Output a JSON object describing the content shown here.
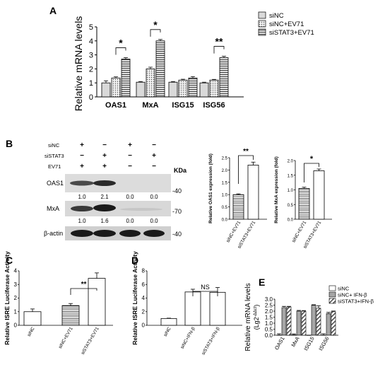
{
  "panel_labels": {
    "A": "A",
    "B": "B",
    "C": "C",
    "D": "D",
    "E": "E"
  },
  "chart_data": [
    {
      "id": "A",
      "type": "bar",
      "ylabel": "Relative mRNA levels",
      "ylim": [
        0,
        5
      ],
      "yticks": [
        "0",
        "1",
        "2",
        "3",
        "4",
        "5"
      ],
      "categories": [
        "OAS1",
        "MxA",
        "ISG15",
        "ISG56"
      ],
      "series": [
        {
          "name": "siNC",
          "values": [
            1.0,
            1.05,
            1.05,
            1.0
          ],
          "errors": [
            0.15,
            0.05,
            0.05,
            0.05
          ],
          "fill": "#d9d9d9",
          "pattern": "solid"
        },
        {
          "name": "siNC+EV71",
          "values": [
            1.35,
            2.0,
            1.2,
            1.2
          ],
          "errors": [
            0.08,
            0.12,
            0.06,
            0.05
          ],
          "fill": "#e6e6e6",
          "pattern": "dots"
        },
        {
          "name": "siSTAT3+EV71",
          "values": [
            2.7,
            4.0,
            1.35,
            2.8
          ],
          "errors": [
            0.1,
            0.1,
            0.1,
            0.1
          ],
          "fill": "#bdbdbd",
          "pattern": "hlines"
        }
      ],
      "significance": [
        {
          "group": 0,
          "label": "*"
        },
        {
          "group": 1,
          "label": "*"
        },
        {
          "group": 3,
          "label": "**"
        }
      ]
    },
    {
      "id": "B-OAS1",
      "type": "bar",
      "ylabel": "Relative OAS1 expression (fold)",
      "ylim": [
        0,
        2.5
      ],
      "yticks": [
        "0.0",
        "0.5",
        "1.0",
        "1.5",
        "2.0",
        "2.5"
      ],
      "categories": [
        "siNC+EV71",
        "siSTAT3+EV71"
      ],
      "values": [
        1.0,
        2.2
      ],
      "errors": [
        0.03,
        0.12
      ],
      "significance": "**"
    },
    {
      "id": "B-MxA",
      "type": "bar",
      "ylabel": "Relative MxA expression (fold)",
      "ylim": [
        0,
        2.0
      ],
      "yticks": [
        "0.0",
        "0.5",
        "1.0",
        "1.5",
        "2.0"
      ],
      "categories": [
        "siNC+EV71",
        "siSTAT3+EV71"
      ],
      "values": [
        1.05,
        1.65
      ],
      "errors": [
        0.04,
        0.06
      ],
      "significance": "*"
    },
    {
      "id": "C",
      "type": "bar",
      "ylabel": "Relative ISRE Luciferase Activity",
      "ylim": [
        0,
        4
      ],
      "yticks": [
        "0",
        "1",
        "2",
        "3",
        "4"
      ],
      "categories": [
        "siNC",
        "siNC+EV71",
        "siSTAT3+EV71"
      ],
      "values": [
        1.0,
        1.45,
        3.45
      ],
      "errors": [
        0.2,
        0.15,
        0.4
      ],
      "significance": "**"
    },
    {
      "id": "D",
      "type": "bar",
      "ylabel": "Relative ISRE Luciferase Activity",
      "ylim": [
        0,
        8
      ],
      "yticks": [
        "0",
        "2",
        "4",
        "6",
        "8"
      ],
      "categories": [
        "siNC",
        "siNC+IFN-β",
        "siSTAT3+IFN-β"
      ],
      "values": [
        1.0,
        4.9,
        4.85
      ],
      "errors": [
        0.05,
        0.4,
        0.7
      ],
      "significance": "NS"
    },
    {
      "id": "E",
      "type": "bar",
      "ylabel": "Relative mRNA levels",
      "ylabel2": "(Lg2",
      "ylabel2_sup": "-ΔΔct",
      "ylabel2_end": ")",
      "ylim": [
        0,
        3.0
      ],
      "yticks": [
        "0.0",
        "0.5",
        "1.0",
        "1.5",
        "2.0",
        "2.5",
        "3.0"
      ],
      "categories": [
        "OAS1",
        "MxA",
        "ISG15",
        "ISG56"
      ],
      "series": [
        {
          "name": "siNC",
          "values": [
            0.02,
            0.03,
            0.01,
            0.02
          ],
          "errors": [
            0.1,
            0.08,
            0.0,
            0.1
          ]
        },
        {
          "name": "siNC+ IFN-β",
          "values": [
            2.3,
            2.0,
            2.5,
            1.8
          ]
        },
        {
          "name": "siSTAT3+IFN-β",
          "values": [
            2.35,
            2.0,
            2.25,
            1.95
          ]
        }
      ],
      "errors_b": [
        0.1,
        0.06,
        0.04,
        0.1
      ],
      "errors_c": [
        0.05,
        0.05,
        0.2,
        0.06
      ]
    }
  ],
  "blot": {
    "row_labels": [
      "siNC",
      "siSTAT3",
      "EV71"
    ],
    "row_signs": [
      [
        "+",
        "−",
        "+",
        "−"
      ],
      [
        "−",
        "+",
        "−",
        "+"
      ],
      [
        "+",
        "+",
        "−",
        "−"
      ]
    ],
    "kda_label": "KDa",
    "bands": [
      {
        "name": "OAS1",
        "kda": "-40",
        "quant": [
          "1.0",
          "2.1",
          "0.0",
          "0.0"
        ]
      },
      {
        "name": "MxA",
        "kda": "-70",
        "quant": [
          "1.0",
          "1.6",
          "0.0",
          "0.0"
        ]
      },
      {
        "name": "β-actin",
        "kda": "-40",
        "quant": []
      }
    ]
  }
}
